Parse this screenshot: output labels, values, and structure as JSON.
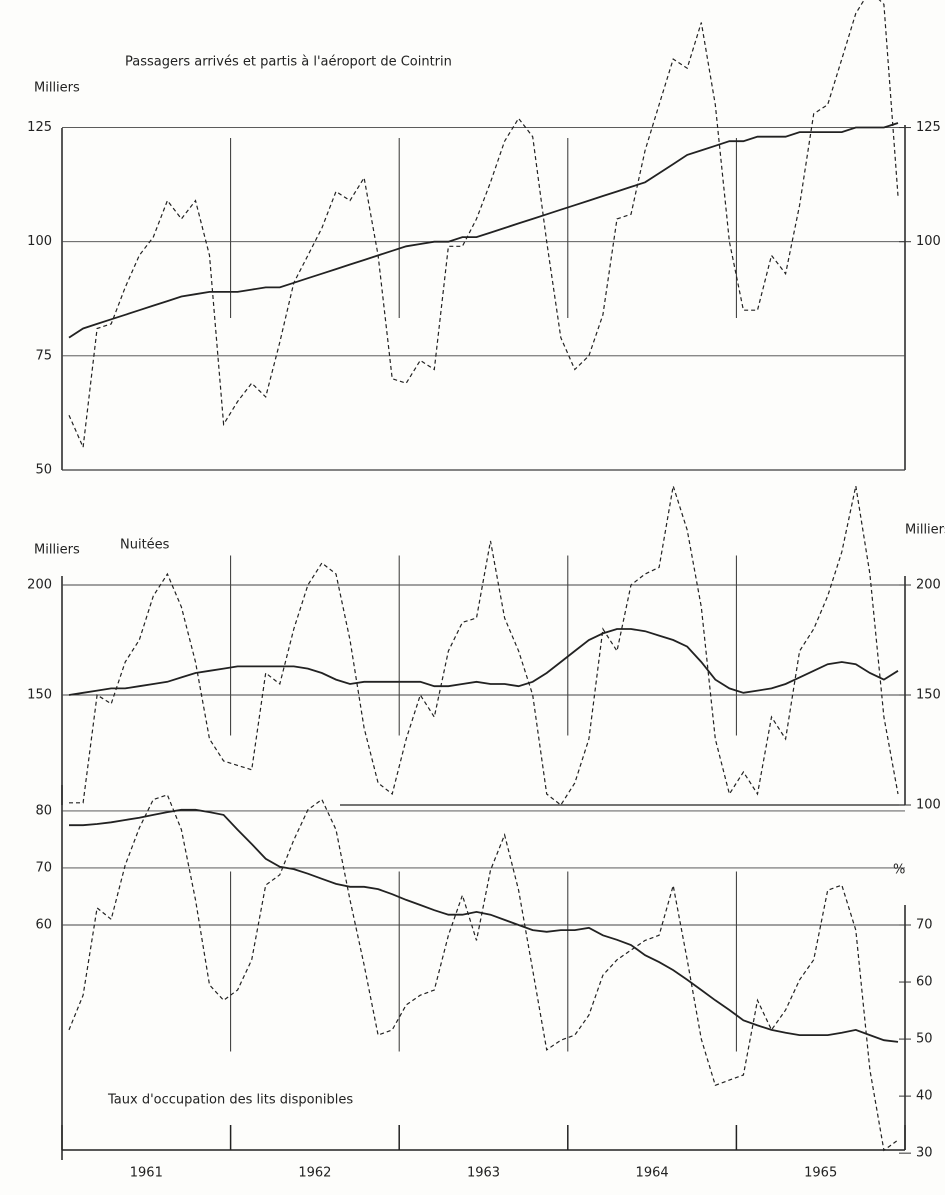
{
  "chart_data": [
    {
      "type": "line",
      "title": "Passagers arrivés et partis à l'aéroport de Cointrin",
      "y_label": "Milliers",
      "ylim": [
        50,
        156
      ],
      "yticks": [
        50,
        75,
        100,
        125
      ],
      "y2lim": [
        50,
        156
      ],
      "y2ticks": [
        100,
        125
      ],
      "series": [
        {
          "style": "dashed",
          "color": "#222222",
          "values": [
            62,
            55,
            81,
            82,
            90,
            97,
            101,
            109,
            105,
            109,
            97,
            60,
            65,
            69,
            66,
            78,
            91,
            97,
            103,
            111,
            109,
            114,
            97,
            70,
            69,
            74,
            72,
            99,
            99,
            105,
            113,
            122,
            127,
            123,
            100,
            79,
            72,
            75,
            84,
            105,
            106,
            120,
            130,
            140,
            138,
            148,
            130,
            100,
            85,
            85,
            97,
            93,
            108,
            128,
            130,
            140,
            150,
            155,
            152,
            110
          ]
        },
        {
          "style": "solid",
          "color": "#222222",
          "values": [
            79,
            81,
            82,
            83,
            84,
            85,
            86,
            87,
            88,
            88.5,
            89,
            89,
            89,
            89.5,
            90,
            90,
            91,
            92,
            93,
            94,
            95,
            96,
            97,
            98,
            99,
            99.5,
            100,
            100,
            101,
            101,
            102,
            103,
            104,
            105,
            106,
            107,
            108,
            109,
            110,
            111,
            112,
            113,
            115,
            117,
            119,
            120,
            121,
            122,
            122,
            123,
            123,
            123,
            124,
            124,
            124,
            124,
            125,
            125,
            125,
            126
          ]
        }
      ]
    },
    {
      "type": "line",
      "title": "Nuitées",
      "y_label": "Milliers",
      "y2_label": "Milliers",
      "ylim": [
        100,
        245
      ],
      "yticks": [
        150,
        200
      ],
      "y2lim": [
        100,
        245
      ],
      "y2ticks": [
        100,
        150,
        200
      ],
      "series": [
        {
          "style": "dashed",
          "color": "#222222",
          "values": [
            101,
            101,
            150,
            146,
            165,
            175,
            195,
            205,
            190,
            165,
            130,
            120,
            118,
            116,
            160,
            155,
            180,
            200,
            210,
            205,
            175,
            135,
            110,
            105,
            130,
            150,
            140,
            170,
            183,
            185,
            220,
            185,
            170,
            150,
            105,
            100,
            110,
            130,
            180,
            170,
            200,
            205,
            208,
            245,
            225,
            190,
            130,
            105,
            115,
            105,
            140,
            130,
            170,
            180,
            195,
            215,
            245,
            205,
            140,
            105
          ]
        },
        {
          "style": "solid",
          "color": "#222222",
          "values": [
            150,
            151,
            152,
            153,
            153,
            154,
            155,
            156,
            158,
            160,
            161,
            162,
            163,
            163,
            163,
            163,
            163,
            162,
            160,
            157,
            155,
            156,
            156,
            156,
            156,
            156,
            154,
            154,
            155,
            156,
            155,
            155,
            154,
            156,
            160,
            165,
            170,
            175,
            178,
            180,
            180,
            179,
            177,
            175,
            172,
            165,
            157,
            153,
            151,
            152,
            153,
            155,
            158,
            161,
            164,
            165,
            164,
            160,
            157,
            161
          ]
        }
      ]
    },
    {
      "type": "line",
      "title": "Taux d'occupation des lits disponibles",
      "y2_label": "%",
      "ylim": [
        18.8,
        88.4
      ],
      "yticks": [
        60,
        70,
        80
      ],
      "y2lim": [
        28.8,
        98.4
      ],
      "y2ticks": [
        30,
        40,
        50,
        60,
        70
      ],
      "categories": [
        null,
        null,
        null,
        null,
        null,
        null,
        "1961",
        null,
        null,
        null,
        null,
        null,
        null,
        null,
        null,
        null,
        null,
        null,
        "1962",
        null,
        null,
        null,
        null,
        null,
        null,
        null,
        null,
        null,
        null,
        null,
        "1963",
        null,
        null,
        null,
        null,
        null,
        null,
        null,
        null,
        null,
        null,
        null,
        "1964",
        null,
        null,
        null,
        null,
        null,
        null,
        null,
        null,
        null,
        null,
        null,
        "1965",
        null,
        null,
        null,
        null,
        null
      ],
      "series": [
        {
          "style": "dashed",
          "color": "#222222",
          "values": [
            41.6,
            47.7,
            63,
            61,
            70.5,
            77,
            82,
            82.8,
            76.7,
            64.4,
            49.5,
            46.8,
            48.6,
            53.9,
            67,
            68.8,
            74.9,
            80.2,
            82,
            76.7,
            64.4,
            53,
            40.7,
            41.6,
            46,
            47.7,
            48.6,
            58.2,
            65.2,
            57.3,
            69.6,
            75.8,
            66.1,
            52.1,
            38.1,
            39.8,
            40.7,
            44.2,
            51.2,
            53.9,
            55.6,
            57.3,
            58.2,
            66.9,
            53.9,
            40,
            31.9,
            32.8,
            33.7,
            46.8,
            41.6,
            45.1,
            50.4,
            53.9,
            66.1,
            67,
            59.1,
            34.6,
            20.5,
            22.3
          ]
        },
        {
          "style": "solid",
          "color": "#222222",
          "values": [
            77.5,
            77.5,
            77.7,
            78,
            78.4,
            78.8,
            79.3,
            79.8,
            80.2,
            80.2,
            79.8,
            79.3,
            76.7,
            74.2,
            71.6,
            70.2,
            69.8,
            69,
            68.1,
            67.2,
            66.7,
            66.7,
            66.3,
            65.4,
            64.4,
            63.5,
            62.6,
            61.8,
            61.8,
            62.3,
            61.8,
            60.9,
            60,
            59.1,
            58.8,
            59.1,
            59.1,
            59.5,
            58.2,
            57.4,
            56.5,
            54.7,
            53.5,
            52.1,
            50.4,
            48.6,
            46.8,
            45.1,
            43.3,
            42.4,
            41.6,
            41.1,
            40.7,
            40.7,
            40.7,
            41.1,
            41.6,
            40.7,
            39.8,
            39.5
          ]
        }
      ]
    }
  ]
}
